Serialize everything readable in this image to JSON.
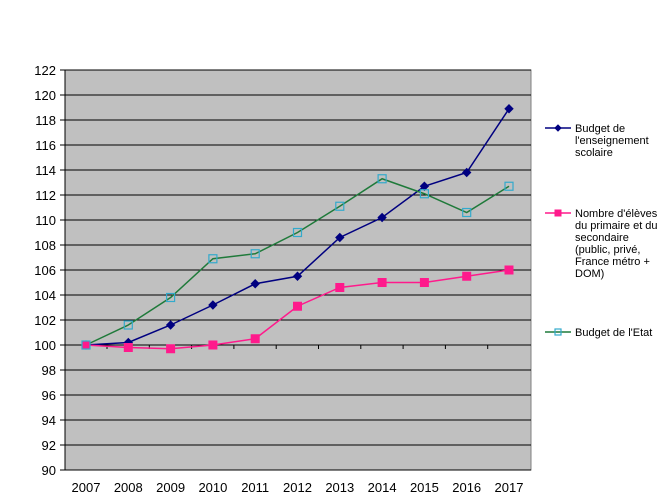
{
  "chart_data": {
    "type": "line",
    "title": "",
    "xlabel": "",
    "ylabel": "",
    "x": [
      "2007",
      "2008",
      "2009",
      "2010",
      "2011",
      "2012",
      "2013",
      "2014",
      "2015",
      "2016",
      "2017"
    ],
    "ylim": [
      90,
      122
    ],
    "ytick_step": 2,
    "grid": true,
    "legend_position": "right",
    "plot_background": "#c0c0c0",
    "series": [
      {
        "name": "Budget de l'enseignement scolaire",
        "legend_lines": [
          "Budget de",
          "l'enseignement",
          "scolaire"
        ],
        "color": "#000080",
        "marker": "diamond-filled",
        "values": [
          100.0,
          100.2,
          101.6,
          103.2,
          104.9,
          105.5,
          108.6,
          110.2,
          112.7,
          113.8,
          118.9
        ]
      },
      {
        "name": "Nombre d'élèves du primaire et du secondaire (public, privé, France métro + DOM)",
        "legend_lines": [
          "Nombre d'élèves",
          "du primaire et du",
          "secondaire",
          "(public, privé,",
          "France métro +",
          "DOM)"
        ],
        "color": "#ff1a8c",
        "marker": "square-filled",
        "values": [
          100.0,
          99.8,
          99.7,
          100.0,
          100.5,
          103.1,
          104.6,
          105.0,
          105.0,
          105.5,
          106.0
        ]
      },
      {
        "name": "Budget de l'Etat",
        "legend_lines": [
          "Budget de l'Etat"
        ],
        "color": "#1f7a3a",
        "marker_color": "#33aacc",
        "marker": "square-hollow",
        "values": [
          100.0,
          101.6,
          103.8,
          106.9,
          107.3,
          109.0,
          111.1,
          113.3,
          112.1,
          110.6,
          112.7
        ]
      }
    ]
  }
}
